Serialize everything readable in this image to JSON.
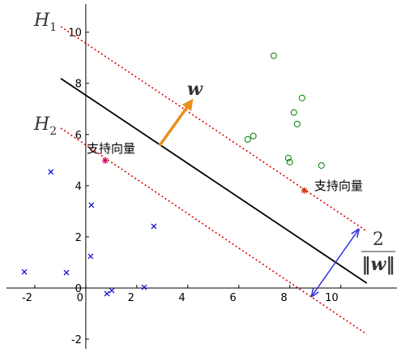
{
  "chart_data": {
    "type": "scatter",
    "xlim": [
      -3.11,
      12.2
    ],
    "ylim": [
      -2.38,
      11.1
    ],
    "xticks": [
      -2,
      0,
      2,
      4,
      6,
      8,
      10
    ],
    "yticks": [
      -2,
      0,
      2,
      4,
      6,
      8,
      10
    ],
    "grid": false,
    "series": [
      {
        "marker": "o",
        "color": "#008000",
        "x": [
          7.37,
          8.48,
          8.16,
          8.29,
          6.57,
          6.35,
          7.94,
          8.0,
          9.24
        ],
        "values": [
          9.08,
          7.43,
          6.86,
          6.41,
          5.94,
          5.81,
          5.08,
          4.92,
          4.79
        ]
      },
      {
        "marker": "x",
        "color": "#0000cc",
        "x": [
          -1.37,
          0.22,
          0.19,
          -2.41,
          -0.76,
          2.67,
          2.29,
          1.02,
          0.83
        ],
        "values": [
          4.54,
          3.24,
          1.24,
          0.63,
          0.6,
          2.41,
          0.03,
          -0.1,
          -0.22
        ]
      },
      {
        "marker": "*",
        "color": "#cc0066",
        "x": [
          0.76
        ],
        "values": [
          4.98
        ]
      },
      {
        "marker": "*",
        "color": "#cc3300",
        "x": [
          8.57
        ],
        "values": [
          3.81
        ]
      },
      {
        "marker": "line",
        "linestyle": "solid",
        "color": "#000000",
        "x": [
          -0.98,
          11.02
        ],
        "values": [
          8.19,
          0.19
        ]
      },
      {
        "marker": "line",
        "linestyle": "dotted",
        "color": "#e00000",
        "x": [
          -0.98,
          11.02
        ],
        "values": [
          10.22,
          2.22
        ]
      },
      {
        "marker": "line",
        "linestyle": "dotted",
        "color": "#e00000",
        "x": [
          -0.98,
          11.02
        ],
        "values": [
          6.25,
          -1.81
        ]
      },
      {
        "marker": "arrow",
        "color": "#e8901c",
        "x": [
          2.89,
          4.16
        ],
        "values": [
          5.56,
          7.33
        ]
      },
      {
        "marker": "double-arrow",
        "color": "#3333dd",
        "x": [
          8.86,
          10.7
        ],
        "values": [
          -0.32,
          2.29
        ]
      }
    ],
    "annotations": {
      "h1": {
        "text": "H",
        "sub": "1"
      },
      "h2": {
        "text": "H",
        "sub": "2"
      },
      "w": "w",
      "support_left": "支持向量",
      "support_right": "支持向量",
      "margin_num": "2",
      "margin_den": "‖w‖"
    }
  }
}
